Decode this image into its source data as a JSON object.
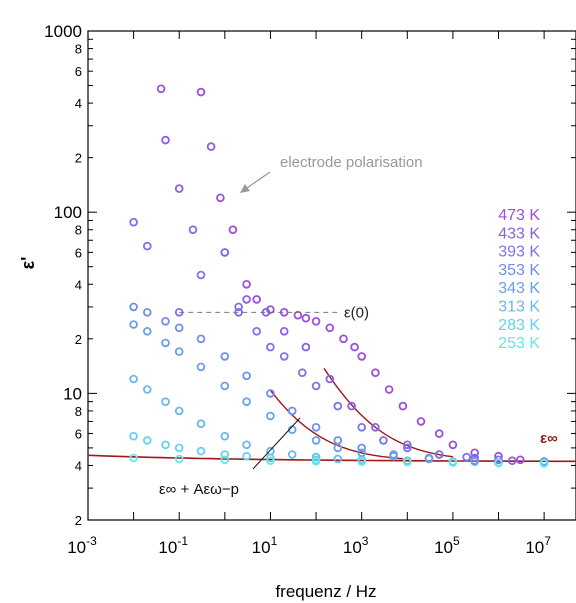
{
  "chart_data": {
    "type": "scatter",
    "title": "",
    "xlabel": "frequenz / Hz",
    "ylabel": "ε'",
    "xscale": "log",
    "yscale": "log",
    "xlim": [
      0.001,
      50000000
    ],
    "ylim": [
      2,
      1000
    ],
    "x_ticks": [
      {
        "value": 0.001,
        "base": "10",
        "exp": "-3"
      },
      {
        "value": 0.1,
        "base": "10",
        "exp": "-1"
      },
      {
        "value": 10,
        "base": "10",
        "exp": "1"
      },
      {
        "value": 1000,
        "base": "10",
        "exp": "3"
      },
      {
        "value": 100000,
        "base": "10",
        "exp": "5"
      },
      {
        "value": 10000000,
        "base": "10",
        "exp": "7"
      }
    ],
    "y_major_ticks": [
      {
        "value": 10,
        "label": "10"
      },
      {
        "value": 100,
        "label": "100"
      },
      {
        "value": 1000,
        "label": "1000"
      }
    ],
    "y_minor_labels": [
      {
        "value": 2,
        "label": "2"
      },
      {
        "value": 4,
        "label": "4"
      },
      {
        "value": 6,
        "label": "6"
      },
      {
        "value": 8,
        "label": "8"
      },
      {
        "value": 20,
        "label": "2"
      },
      {
        "value": 40,
        "label": "4"
      },
      {
        "value": 60,
        "label": "6"
      },
      {
        "value": 80,
        "label": "8"
      },
      {
        "value": 200,
        "label": "2"
      },
      {
        "value": 400,
        "label": "4"
      },
      {
        "value": 600,
        "label": "6"
      },
      {
        "value": 800,
        "label": "8"
      }
    ],
    "grid": false,
    "legend_position": "right",
    "series": [
      {
        "name": "473 K",
        "color": "#9b4fe0",
        "points": [
          [
            0.04,
            480
          ],
          [
            0.3,
            460
          ],
          [
            0.8,
            120
          ],
          [
            1.5,
            80
          ],
          [
            3,
            40
          ],
          [
            5,
            33
          ],
          [
            10,
            29
          ],
          [
            20,
            28
          ],
          [
            40,
            27
          ],
          [
            60,
            26
          ],
          [
            100,
            25
          ],
          [
            200,
            23
          ],
          [
            400,
            20
          ],
          [
            700,
            18
          ],
          [
            1000,
            16
          ],
          [
            2000,
            13
          ],
          [
            4000,
            10.5
          ],
          [
            8000,
            8.5
          ],
          [
            20000,
            7
          ],
          [
            50000,
            6
          ],
          [
            100000,
            5.2
          ],
          [
            300000,
            4.7
          ],
          [
            1000000,
            4.5
          ],
          [
            3000000,
            4.3
          ],
          [
            10000000,
            4.2
          ]
        ]
      },
      {
        "name": "433 K",
        "color": "#8a5ee8",
        "points": [
          [
            0.05,
            250
          ],
          [
            0.1,
            135
          ],
          [
            0.5,
            230
          ],
          [
            1,
            60
          ],
          [
            2,
            28
          ],
          [
            3,
            33
          ],
          [
            8,
            28
          ],
          [
            20,
            22
          ],
          [
            60,
            18
          ],
          [
            200,
            12
          ],
          [
            600,
            8.5
          ],
          [
            2000,
            6.5
          ],
          [
            10000,
            5.2
          ],
          [
            50000,
            4.6
          ],
          [
            300000,
            4.4
          ],
          [
            2000000,
            4.25
          ],
          [
            10000000,
            4.2
          ]
        ]
      },
      {
        "name": "393 K",
        "color": "#7a73ec",
        "points": [
          [
            0.01,
            88
          ],
          [
            0.02,
            65
          ],
          [
            0.1,
            28
          ],
          [
            0.2,
            80
          ],
          [
            0.3,
            45
          ],
          [
            2,
            30
          ],
          [
            5,
            22
          ],
          [
            10,
            18
          ],
          [
            20,
            16
          ],
          [
            50,
            13
          ],
          [
            100,
            11
          ],
          [
            300,
            8.5
          ],
          [
            1000,
            6.5
          ],
          [
            3000,
            5.5
          ],
          [
            10000,
            5
          ],
          [
            50000,
            4.6
          ],
          [
            200000,
            4.45
          ],
          [
            1000000,
            4.3
          ],
          [
            10000000,
            4.2
          ]
        ]
      },
      {
        "name": "353 K",
        "color": "#6d8eec",
        "points": [
          [
            0.01,
            30
          ],
          [
            0.02,
            28
          ],
          [
            0.05,
            25
          ],
          [
            0.1,
            23
          ],
          [
            0.3,
            20
          ],
          [
            1,
            16
          ],
          [
            3,
            12.5
          ],
          [
            10,
            10
          ],
          [
            30,
            8
          ],
          [
            100,
            6.5
          ],
          [
            300,
            5.5
          ],
          [
            1000,
            5
          ],
          [
            5000,
            4.6
          ],
          [
            30000,
            4.4
          ],
          [
            300000,
            4.25
          ],
          [
            10000000,
            4.2
          ]
        ]
      },
      {
        "name": "343 K",
        "color": "#6aa0ea",
        "points": [
          [
            0.01,
            24
          ],
          [
            0.02,
            22
          ],
          [
            0.05,
            19
          ],
          [
            0.1,
            17
          ],
          [
            0.3,
            14
          ],
          [
            1,
            11
          ],
          [
            3,
            9
          ],
          [
            10,
            7.5
          ],
          [
            30,
            6.3
          ],
          [
            100,
            5.5
          ],
          [
            300,
            5
          ],
          [
            1000,
            4.7
          ],
          [
            5000,
            4.5
          ],
          [
            30000,
            4.35
          ],
          [
            300000,
            4.2
          ],
          [
            10000000,
            4.15
          ]
        ]
      },
      {
        "name": "313 K",
        "color": "#6ab8e8",
        "points": [
          [
            0.01,
            12
          ],
          [
            0.02,
            10.5
          ],
          [
            0.05,
            9
          ],
          [
            0.1,
            8
          ],
          [
            0.3,
            6.8
          ],
          [
            1,
            5.8
          ],
          [
            3,
            5.2
          ],
          [
            10,
            4.8
          ],
          [
            30,
            4.6
          ],
          [
            100,
            4.45
          ],
          [
            300,
            4.35
          ],
          [
            1000,
            4.3
          ],
          [
            10000,
            4.25
          ],
          [
            100000,
            4.2
          ],
          [
            1000000,
            4.15
          ],
          [
            10000000,
            4.15
          ]
        ]
      },
      {
        "name": "283 K",
        "color": "#66d2ec",
        "points": [
          [
            0.01,
            5.8
          ],
          [
            0.02,
            5.5
          ],
          [
            0.05,
            5.2
          ],
          [
            0.1,
            5
          ],
          [
            0.3,
            4.8
          ],
          [
            1,
            4.6
          ],
          [
            3,
            4.5
          ],
          [
            10,
            4.4
          ],
          [
            100,
            4.3
          ],
          [
            1000,
            4.25
          ],
          [
            10000,
            4.2
          ],
          [
            100000,
            4.18
          ],
          [
            1000000,
            4.15
          ],
          [
            10000000,
            4.12
          ]
        ]
      },
      {
        "name": "253 K",
        "color": "#66e6ea",
        "points": [
          [
            0.01,
            4.4
          ],
          [
            0.1,
            4.35
          ],
          [
            1,
            4.3
          ],
          [
            10,
            4.25
          ],
          [
            100,
            4.22
          ],
          [
            1000,
            4.2
          ],
          [
            10000,
            4.18
          ],
          [
            100000,
            4.15
          ],
          [
            1000000,
            4.12
          ],
          [
            10000000,
            4.1
          ]
        ]
      }
    ],
    "annotations": {
      "electrode": "electrode polarisation",
      "eps0": "ε(0)",
      "eps_inf": "ε∞",
      "fit_formula": "ε∞ + Aεω−p"
    }
  }
}
